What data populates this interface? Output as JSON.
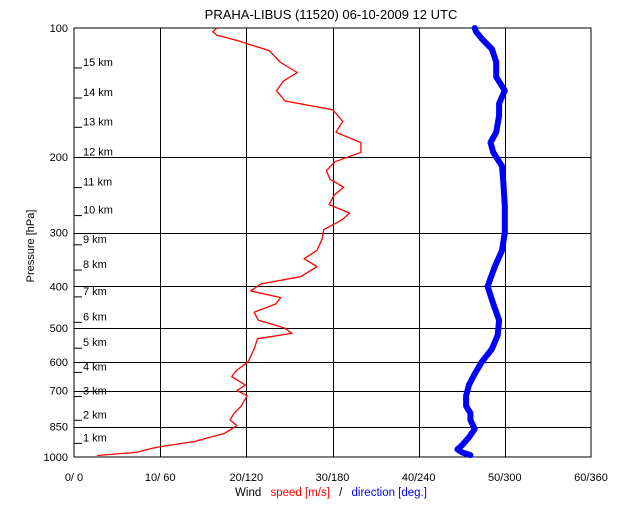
{
  "title": "PRAHA-LIBUS (11520)    06-10-2009   12   UTC",
  "chart_data": [
    {
      "type": "line",
      "title": "PRAHA-LIBUS (11520)    06-10-2009   12   UTC",
      "ylabel": "Pressure [hPa]",
      "xlabel_parts": {
        "prefix": "Wind",
        "speed": "speed [m/s]",
        "sep": "/",
        "direction": "direction [deg.]"
      },
      "y_axis": {
        "scale": "log",
        "reversed": true,
        "ylim": [
          1000,
          100
        ],
        "ticks": [
          100,
          200,
          300,
          400,
          500,
          600,
          700,
          850,
          1000
        ],
        "tick_labels": [
          "100",
          "200",
          "300",
          "400",
          "500",
          "600",
          "700",
          "850",
          "1000"
        ]
      },
      "x_axis": {
        "speed_range": [
          0,
          60
        ],
        "direction_range": [
          0,
          360
        ],
        "ticks_speed": [
          0,
          10,
          20,
          30,
          40,
          50,
          60
        ],
        "tick_labels": [
          "0/  0",
          "10/ 60",
          "20/120",
          "30/180",
          "40/240",
          "50/300",
          "60/360"
        ]
      },
      "height_labels": [
        {
          "label": "1 km",
          "p": 900
        },
        {
          "label": "2 km",
          "p": 795
        },
        {
          "label": "3 km",
          "p": 700
        },
        {
          "label": "4 km",
          "p": 615
        },
        {
          "label": "5 km",
          "p": 540
        },
        {
          "label": "6 km",
          "p": 470
        },
        {
          "label": "7 km",
          "p": 410
        },
        {
          "label": "8 km",
          "p": 355
        },
        {
          "label": "9 km",
          "p": 310
        },
        {
          "label": "10 km",
          "p": 265
        },
        {
          "label": "11 km",
          "p": 228
        },
        {
          "label": "12 km",
          "p": 194
        },
        {
          "label": "13 km",
          "p": 165
        },
        {
          "label": "14 km",
          "p": 141
        },
        {
          "label": "15 km",
          "p": 120
        }
      ],
      "grid": true,
      "colors": {
        "speed": "#ff0000",
        "direction": "#0000ff",
        "grid": "#000000"
      },
      "series": [
        {
          "name": "speed [m/s]",
          "values": [
            {
              "p": 992,
              "v": 2.7
            },
            {
              "p": 975,
              "v": 7.3
            },
            {
              "p": 950,
              "v": 9.5
            },
            {
              "p": 920,
              "v": 14.0
            },
            {
              "p": 880,
              "v": 17.5
            },
            {
              "p": 845,
              "v": 18.9
            },
            {
              "p": 820,
              "v": 18.1
            },
            {
              "p": 790,
              "v": 18.6
            },
            {
              "p": 760,
              "v": 19.4
            },
            {
              "p": 720,
              "v": 20.1
            },
            {
              "p": 700,
              "v": 18.9
            },
            {
              "p": 680,
              "v": 19.9
            },
            {
              "p": 650,
              "v": 18.3
            },
            {
              "p": 630,
              "v": 18.8
            },
            {
              "p": 600,
              "v": 20.2
            },
            {
              "p": 560,
              "v": 20.9
            },
            {
              "p": 530,
              "v": 21.3
            },
            {
              "p": 515,
              "v": 25.3
            },
            {
              "p": 500,
              "v": 24.4
            },
            {
              "p": 480,
              "v": 21.4
            },
            {
              "p": 460,
              "v": 20.9
            },
            {
              "p": 440,
              "v": 23.4
            },
            {
              "p": 425,
              "v": 24.0
            },
            {
              "p": 410,
              "v": 20.5
            },
            {
              "p": 395,
              "v": 21.7
            },
            {
              "p": 380,
              "v": 26.3
            },
            {
              "p": 360,
              "v": 28.2
            },
            {
              "p": 345,
              "v": 26.7
            },
            {
              "p": 330,
              "v": 28.2
            },
            {
              "p": 310,
              "v": 28.8
            },
            {
              "p": 295,
              "v": 29.0
            },
            {
              "p": 280,
              "v": 31.1
            },
            {
              "p": 270,
              "v": 32.0
            },
            {
              "p": 258,
              "v": 29.6
            },
            {
              "p": 245,
              "v": 30.2
            },
            {
              "p": 235,
              "v": 31.3
            },
            {
              "p": 225,
              "v": 29.7
            },
            {
              "p": 215,
              "v": 29.3
            },
            {
              "p": 205,
              "v": 30.3
            },
            {
              "p": 195,
              "v": 33.3
            },
            {
              "p": 185,
              "v": 33.3
            },
            {
              "p": 175,
              "v": 30.4
            },
            {
              "p": 165,
              "v": 31.2
            },
            {
              "p": 155,
              "v": 30.0
            },
            {
              "p": 148,
              "v": 24.5
            },
            {
              "p": 140,
              "v": 23.5
            },
            {
              "p": 133,
              "v": 24.3
            },
            {
              "p": 127,
              "v": 25.9
            },
            {
              "p": 120,
              "v": 23.9
            },
            {
              "p": 113,
              "v": 22.7
            },
            {
              "p": 107,
              "v": 19.0
            },
            {
              "p": 104,
              "v": 16.6
            },
            {
              "p": 102,
              "v": 16.1
            },
            {
              "p": 100,
              "v": 16.6
            }
          ]
        },
        {
          "name": "direction [deg.]",
          "values": [
            {
              "p": 990,
              "v": 276
            },
            {
              "p": 975,
              "v": 270
            },
            {
              "p": 960,
              "v": 267
            },
            {
              "p": 940,
              "v": 270
            },
            {
              "p": 900,
              "v": 275
            },
            {
              "p": 860,
              "v": 279
            },
            {
              "p": 820,
              "v": 276
            },
            {
              "p": 790,
              "v": 276
            },
            {
              "p": 760,
              "v": 273
            },
            {
              "p": 720,
              "v": 273
            },
            {
              "p": 680,
              "v": 275
            },
            {
              "p": 640,
              "v": 279
            },
            {
              "p": 600,
              "v": 284
            },
            {
              "p": 560,
              "v": 291
            },
            {
              "p": 520,
              "v": 295
            },
            {
              "p": 480,
              "v": 296
            },
            {
              "p": 440,
              "v": 292
            },
            {
              "p": 400,
              "v": 288
            },
            {
              "p": 360,
              "v": 293
            },
            {
              "p": 330,
              "v": 298
            },
            {
              "p": 300,
              "v": 300
            },
            {
              "p": 260,
              "v": 300
            },
            {
              "p": 230,
              "v": 299
            },
            {
              "p": 210,
              "v": 298
            },
            {
              "p": 195,
              "v": 292
            },
            {
              "p": 185,
              "v": 290
            },
            {
              "p": 175,
              "v": 294
            },
            {
              "p": 160,
              "v": 296
            },
            {
              "p": 150,
              "v": 296
            },
            {
              "p": 140,
              "v": 300
            },
            {
              "p": 130,
              "v": 294
            },
            {
              "p": 120,
              "v": 294
            },
            {
              "p": 112,
              "v": 291
            },
            {
              "p": 106,
              "v": 284
            },
            {
              "p": 102,
              "v": 280
            },
            {
              "p": 100,
              "v": 279
            }
          ]
        }
      ]
    }
  ]
}
